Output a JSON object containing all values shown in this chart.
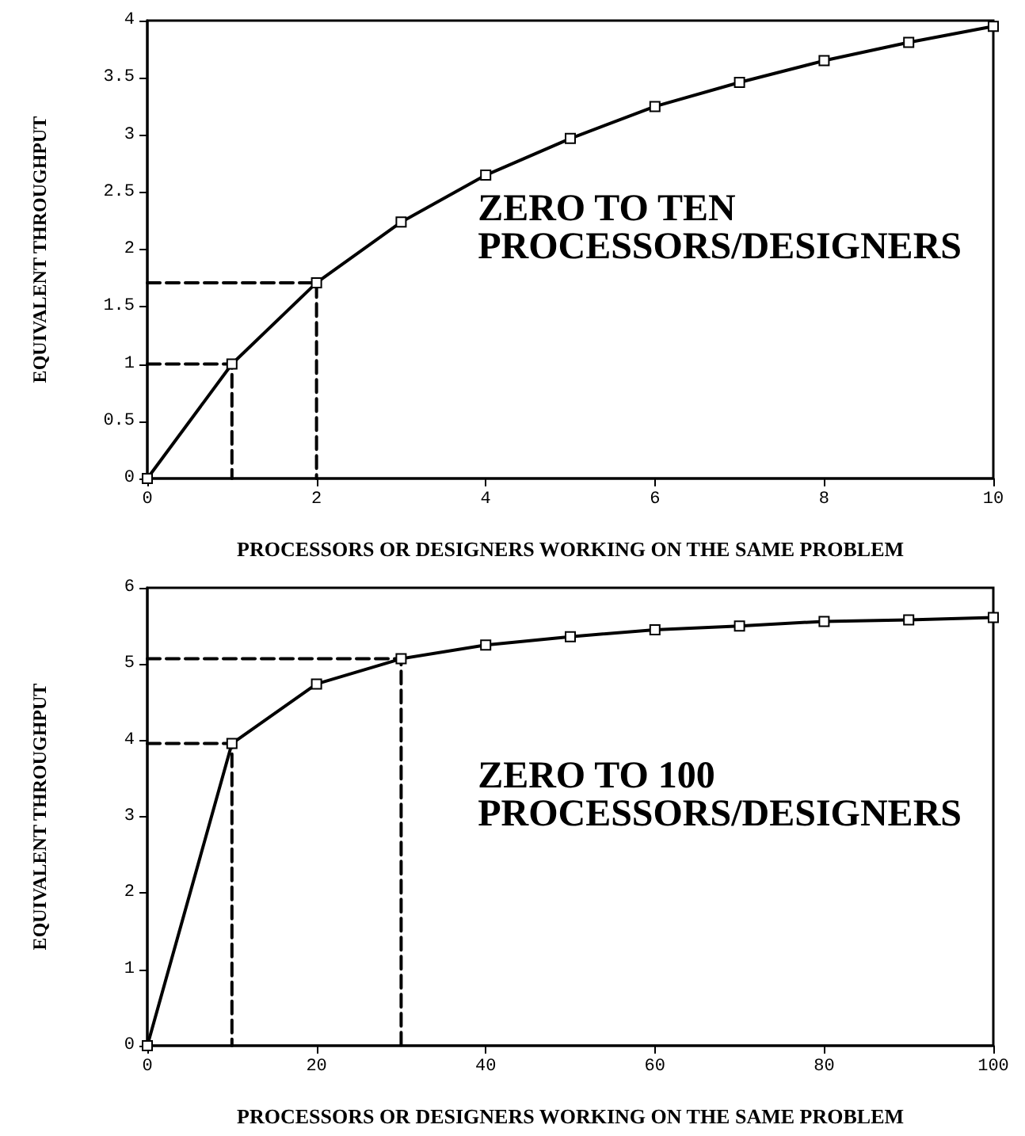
{
  "chart_data": [
    {
      "type": "line",
      "xlabel": "PROCESSORS OR DESIGNERS WORKING ON THE SAME PROBLEM",
      "ylabel": "EQUIVALENT THROUGHPUT",
      "annotations": [
        "ZERO TO TEN\nPROCESSORS/DESIGNERS"
      ],
      "xlim": [
        0,
        10
      ],
      "xticks": [
        0,
        2,
        4,
        6,
        8,
        10
      ],
      "ylim": [
        0,
        4
      ],
      "yticks": [
        0,
        0.5,
        1,
        1.5,
        2,
        2.5,
        3,
        3.5,
        4
      ],
      "grid": false,
      "series": [
        {
          "color": "#000000",
          "marker": "square",
          "line_style": "solid",
          "x": [
            0,
            1,
            2,
            3,
            4,
            5,
            6,
            7,
            8,
            9,
            10
          ],
          "values": [
            0,
            1,
            1.71,
            2.24,
            2.65,
            2.97,
            3.25,
            3.46,
            3.65,
            3.81,
            3.95
          ]
        },
        {
          "color": "#000000",
          "marker": "none",
          "line_style": "dashed",
          "x": [
            0,
            1,
            1
          ],
          "values": [
            1,
            1,
            0
          ]
        },
        {
          "color": "#000000",
          "marker": "none",
          "line_style": "dashed",
          "x": [
            0,
            2,
            2
          ],
          "values": [
            1.71,
            1.71,
            0
          ]
        }
      ]
    },
    {
      "type": "line",
      "xlabel": "PROCESSORS OR DESIGNERS WORKING ON THE SAME PROBLEM",
      "ylabel": "EQUIVALENT THROUGHPUT",
      "annotations": [
        "ZERO TO 100\nPROCESSORS/DESIGNERS"
      ],
      "xlim": [
        0,
        100
      ],
      "xticks": [
        0,
        20,
        40,
        60,
        80,
        100
      ],
      "ylim": [
        0,
        6
      ],
      "yticks": [
        0,
        1,
        2,
        3,
        4,
        5,
        6
      ],
      "grid": false,
      "series": [
        {
          "color": "#000000",
          "marker": "square",
          "line_style": "solid",
          "x": [
            0,
            10,
            20,
            30,
            40,
            50,
            60,
            70,
            80,
            90,
            100
          ],
          "values": [
            0,
            3.96,
            4.74,
            5.07,
            5.25,
            5.36,
            5.45,
            5.5,
            5.56,
            5.58,
            5.61
          ]
        },
        {
          "color": "#000000",
          "marker": "none",
          "line_style": "dashed",
          "x": [
            0,
            10,
            10
          ],
          "values": [
            3.96,
            3.96,
            0
          ]
        },
        {
          "color": "#000000",
          "marker": "none",
          "line_style": "dashed",
          "x": [
            0,
            30,
            30
          ],
          "values": [
            5.07,
            5.07,
            0
          ]
        }
      ]
    }
  ]
}
